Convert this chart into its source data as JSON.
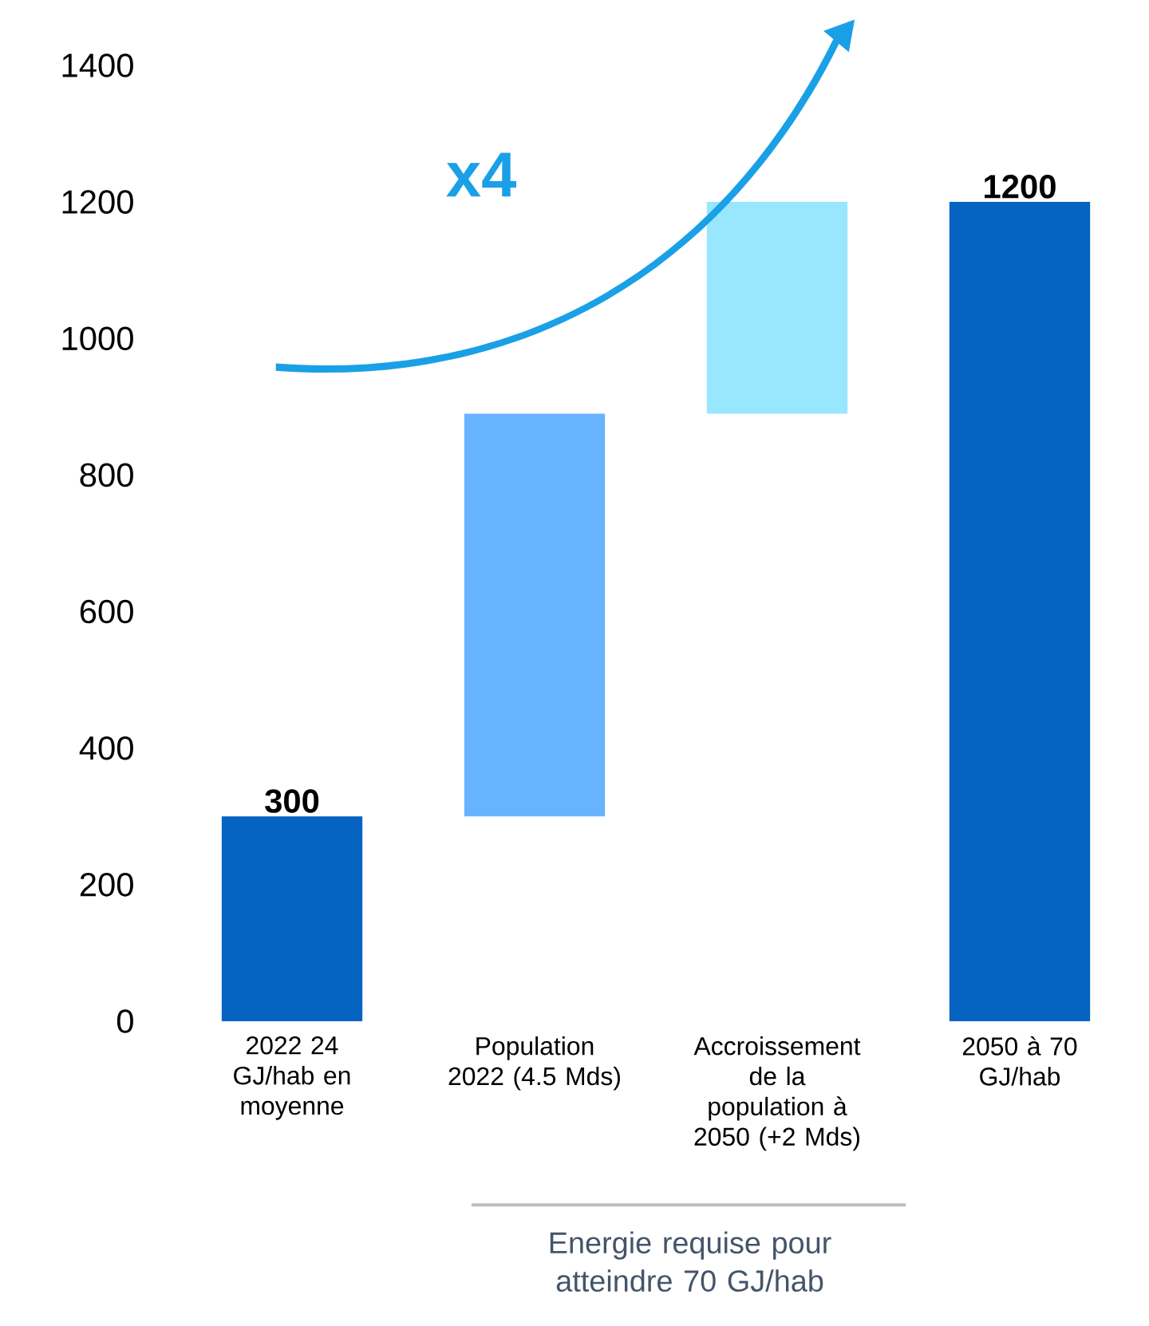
{
  "chart_data": {
    "type": "bar",
    "categories": [
      "2022 24 GJ/hab en moyenne",
      "Population 2022 (4.5 Mds)",
      "Accroissement de la population à 2050 (+2 Mds)",
      "2050 à 70 GJ/hab"
    ],
    "values": [
      300,
      590,
      310,
      1200
    ],
    "base": [
      0,
      300,
      890,
      0
    ],
    "colors": [
      "#0563c1",
      "#66b3ff",
      "#99e6ff",
      "#0563c1"
    ],
    "value_labels": [
      "300",
      null,
      null,
      "1200"
    ],
    "ylim": [
      0,
      1400
    ],
    "yticks": [
      0,
      200,
      400,
      600,
      800,
      1000,
      1200,
      1400
    ],
    "annotations": [
      "x4",
      "Energie requise pour atteindre 70 GJ/hab"
    ]
  }
}
